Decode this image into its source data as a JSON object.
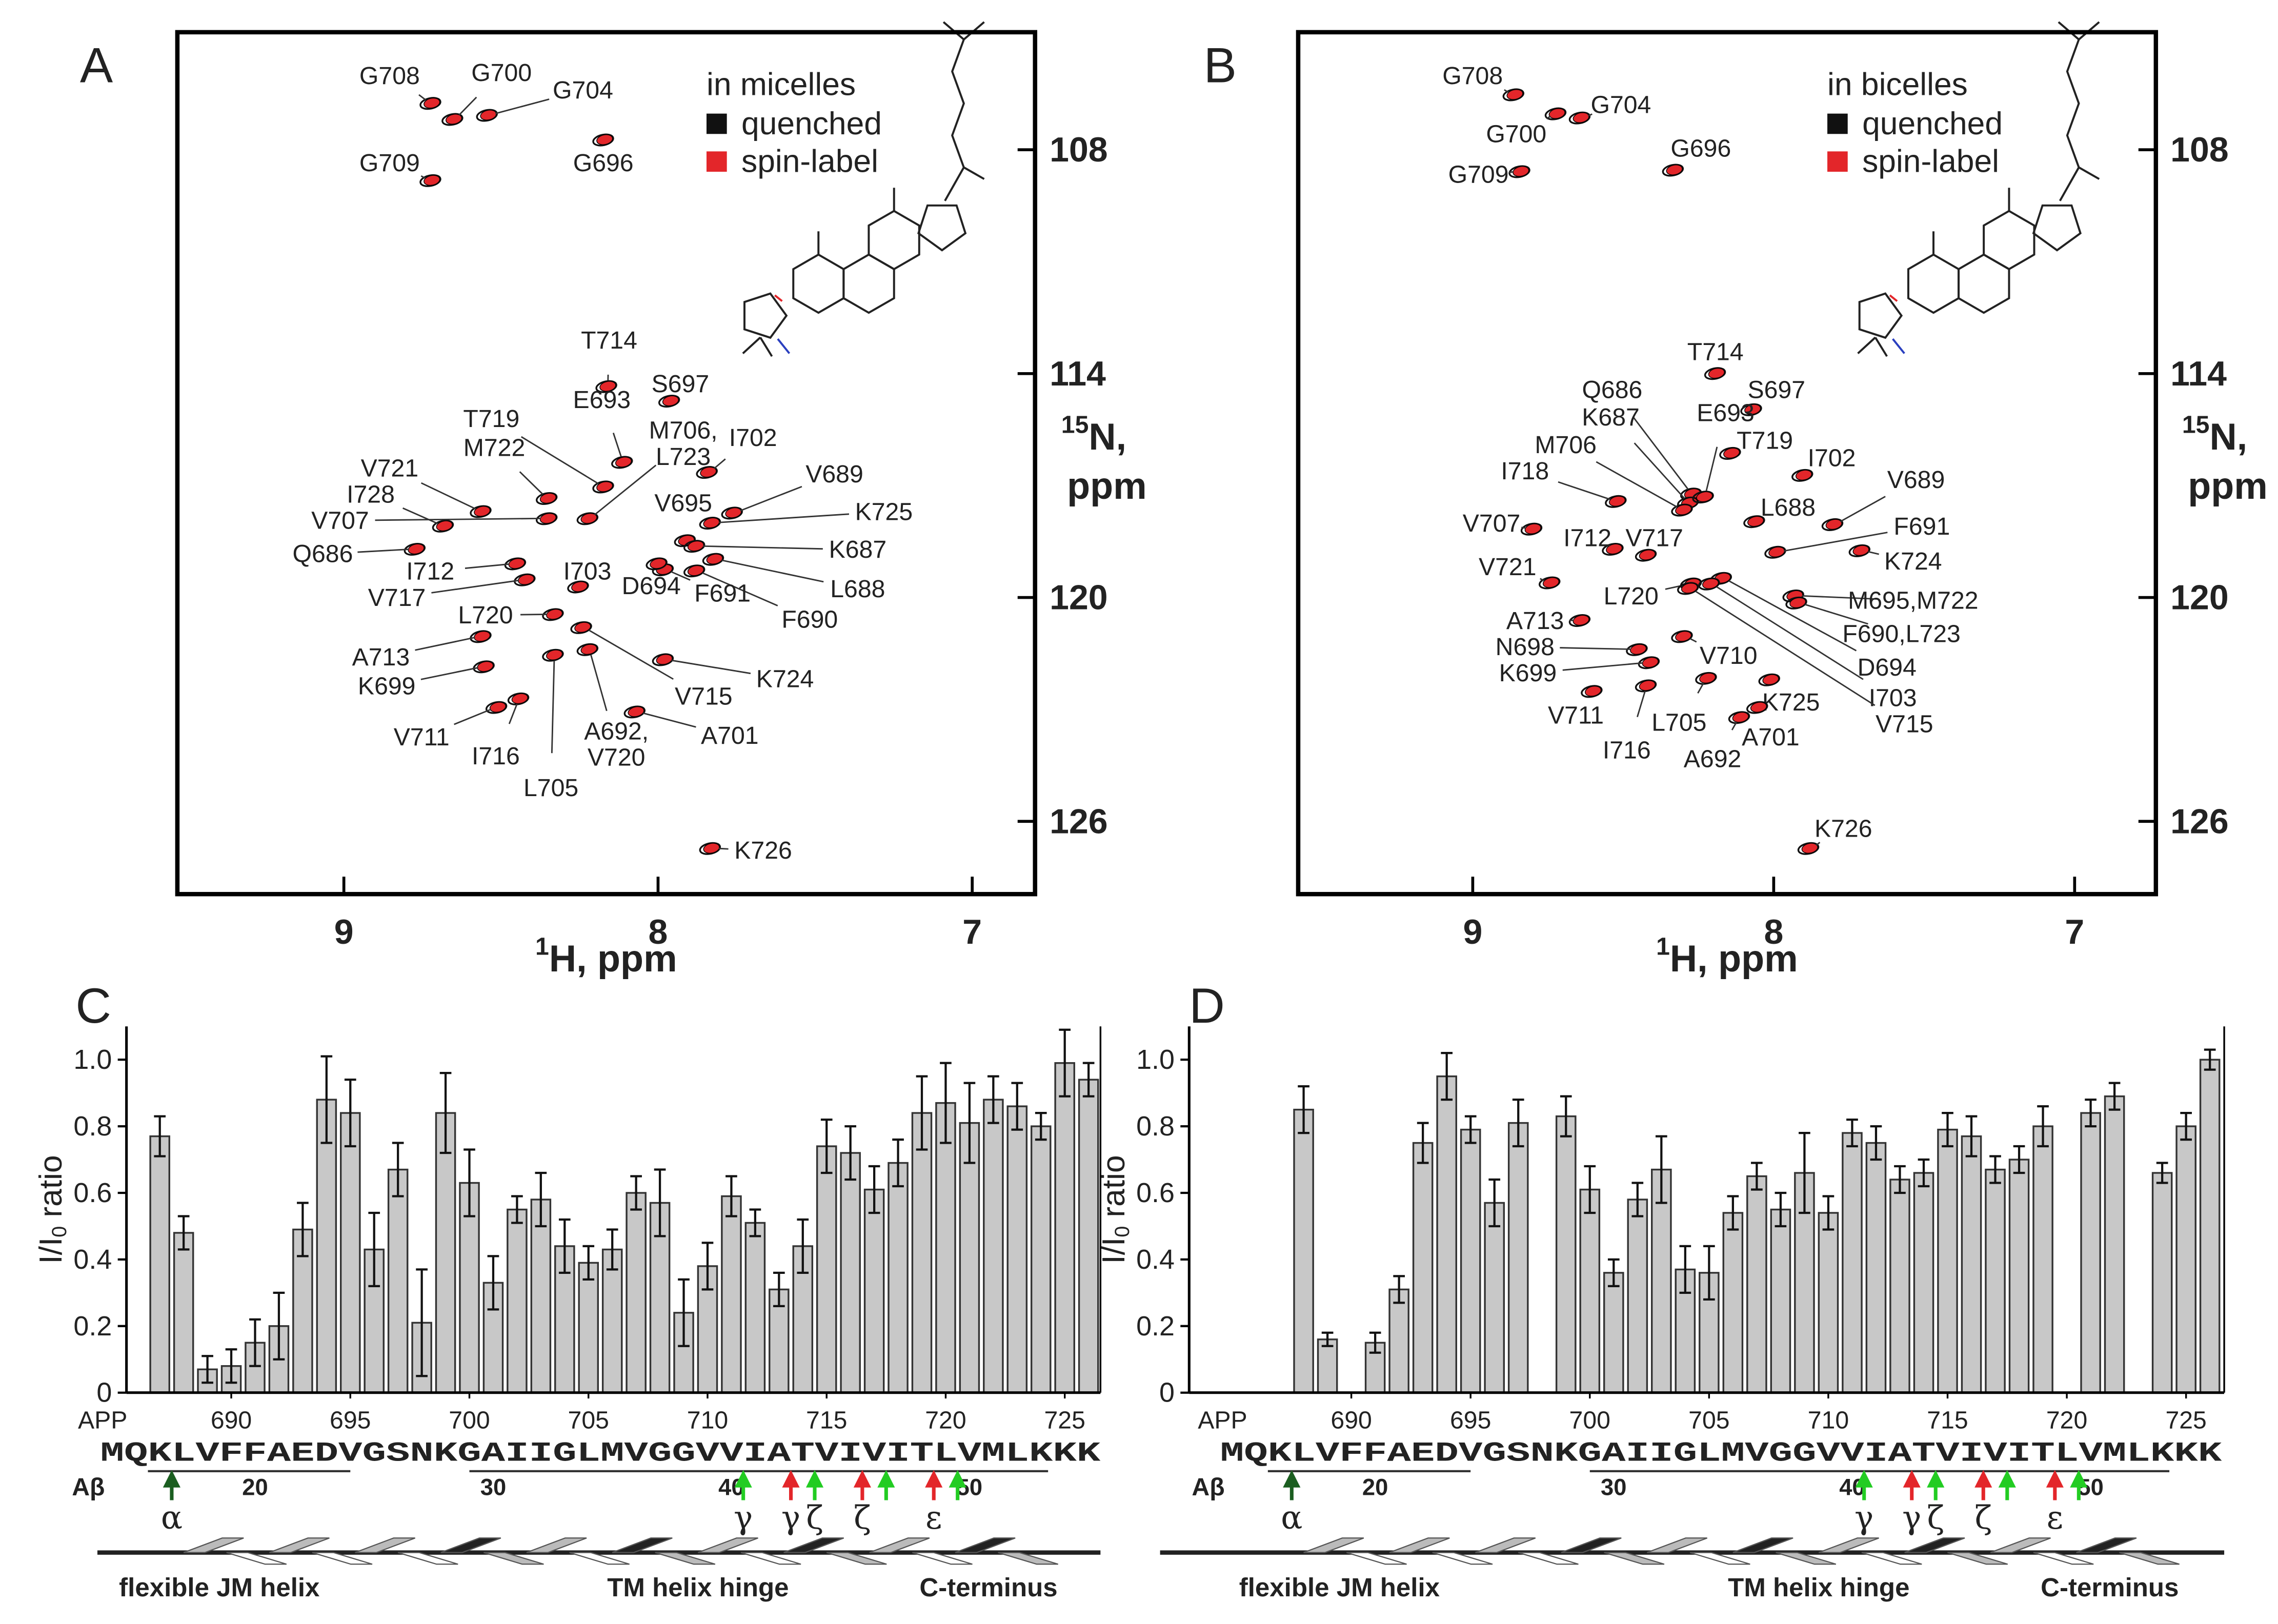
{
  "chart_data": [
    {
      "type": "scatter",
      "panel": "A",
      "legend_title": "in micelles",
      "legend": [
        {
          "name": "quenched",
          "color": "#111111"
        },
        {
          "name": "spin-label",
          "color": "#e3262a"
        }
      ],
      "xlabel": {
        "sup": "1",
        "text": "H, ppm"
      },
      "ylabel": {
        "sup": "15",
        "text": "N,",
        "text2": "ppm"
      },
      "xlim": [
        9.53,
        6.8
      ],
      "ylim": [
        104.85,
        127.95
      ],
      "xticks": [
        9,
        8,
        7
      ],
      "yticks": [
        108,
        114,
        120,
        126
      ],
      "labels": [
        "G708",
        "G700",
        "G704",
        "G709",
        "G696",
        "T714",
        "S697",
        "E693",
        "T719",
        "M722",
        "V721",
        "I728",
        "V707",
        "Q686",
        [
          "M706,",
          "L723"
        ],
        "I702",
        "V689",
        "V695",
        "K725",
        "K687",
        "L688",
        "F690",
        "F691",
        "D694",
        "I703",
        "I712",
        "V717",
        "L720",
        "A713",
        "K699",
        "V711",
        "I716",
        "L705",
        "V715",
        [
          "A692,",
          "V720"
        ],
        "A701",
        "K724",
        "K726"
      ],
      "x": [
        8.72,
        8.65,
        8.54,
        8.72,
        8.17,
        8.16,
        7.96,
        8.11,
        8.17,
        8.35,
        8.56,
        8.68,
        8.35,
        8.77,
        8.22,
        7.84,
        7.76,
        7.91,
        7.83,
        7.88,
        7.82,
        7.88,
        7.98,
        8.0,
        8.25,
        8.45,
        8.42,
        8.33,
        8.56,
        8.55,
        8.51,
        8.44,
        8.33,
        8.24,
        8.22,
        8.07,
        7.98,
        7.83
      ],
      "y": [
        106.75,
        107.18,
        107.07,
        108.82,
        107.73,
        114.34,
        114.73,
        116.37,
        117.03,
        117.34,
        117.69,
        118.08,
        117.88,
        118.7,
        117.88,
        116.64,
        117.73,
        118.47,
        118.0,
        118.62,
        118.97,
        119.28,
        119.25,
        119.09,
        119.71,
        119.09,
        119.52,
        120.45,
        121.04,
        121.85,
        122.94,
        122.71,
        121.54,
        120.8,
        121.39,
        123.06,
        121.66,
        126.72
      ]
    },
    {
      "type": "scatter",
      "panel": "B",
      "legend_title": "in bicelles",
      "legend": [
        {
          "name": "quenched",
          "color": "#111111"
        },
        {
          "name": "spin-label",
          "color": "#e3262a"
        }
      ],
      "xlabel": {
        "sup": "1",
        "text": "H, ppm"
      },
      "ylabel": {
        "sup": "15",
        "text": "N,",
        "text2": "ppm"
      },
      "xlim": [
        9.58,
        6.73
      ],
      "ylim": [
        104.85,
        127.95
      ],
      "xticks": [
        9,
        8,
        7
      ],
      "yticks": [
        108,
        114,
        120,
        126
      ],
      "labels": [
        "G708",
        "G700",
        "G704",
        "G709",
        "G696",
        "T714",
        "S697",
        "Q686",
        "K687",
        "E693",
        "M706",
        "T719",
        "I702",
        "I718",
        "V689",
        "L688",
        "V707",
        "I712",
        "V717",
        "F691",
        "K724",
        "V721",
        "M695,M722",
        "F690,L723",
        "L720",
        "D694",
        "I703",
        "V715",
        "A713",
        "N698",
        "K699",
        "V710",
        "K725",
        "L705",
        "V711",
        "I716",
        "A692",
        "A701",
        "K726"
      ],
      "x": [
        8.86,
        8.72,
        8.64,
        8.84,
        8.33,
        8.19,
        8.07,
        8.27,
        8.28,
        8.23,
        8.3,
        8.14,
        7.9,
        8.52,
        7.8,
        8.06,
        8.8,
        8.53,
        8.42,
        7.99,
        7.71,
        8.74,
        7.93,
        7.92,
        8.27,
        8.17,
        8.21,
        8.28,
        8.64,
        8.45,
        8.41,
        8.3,
        8.01,
        8.22,
        8.6,
        8.42,
        8.11,
        8.05,
        7.88
      ],
      "y": [
        106.52,
        107.03,
        107.14,
        108.58,
        108.54,
        113.99,
        114.96,
        117.22,
        117.46,
        117.3,
        117.65,
        116.13,
        116.72,
        117.42,
        118.04,
        117.96,
        118.16,
        118.7,
        118.86,
        118.78,
        118.74,
        119.6,
        119.95,
        120.14,
        119.63,
        119.48,
        119.63,
        119.75,
        120.61,
        121.39,
        121.74,
        121.04,
        122.2,
        122.16,
        122.51,
        122.36,
        123.21,
        122.94,
        126.72
      ]
    },
    {
      "type": "bar",
      "panel": "C",
      "color": "#c8c8c8",
      "x": [
        687,
        688,
        689,
        690,
        691,
        692,
        693,
        694,
        695,
        696,
        697,
        698,
        699,
        700,
        701,
        702,
        703,
        704,
        705,
        706,
        707,
        708,
        709,
        710,
        711,
        712,
        713,
        714,
        715,
        716,
        717,
        718,
        719,
        720,
        721,
        722,
        723,
        724,
        725,
        726
      ],
      "values": [
        0.77,
        0.48,
        0.07,
        0.08,
        0.15,
        0.2,
        0.49,
        0.88,
        0.84,
        0.43,
        0.67,
        0.21,
        0.84,
        0.63,
        0.33,
        0.55,
        0.58,
        0.44,
        0.39,
        0.43,
        0.6,
        0.57,
        0.24,
        0.38,
        0.59,
        0.51,
        0.31,
        0.44,
        0.74,
        0.72,
        0.61,
        0.69,
        0.84,
        0.87,
        0.81,
        0.88,
        0.86,
        0.8,
        0.99,
        0.94
      ],
      "errors": [
        0.06,
        0.05,
        0.04,
        0.05,
        0.07,
        0.1,
        0.08,
        0.13,
        0.1,
        0.11,
        0.08,
        0.16,
        0.12,
        0.1,
        0.08,
        0.04,
        0.08,
        0.08,
        0.05,
        0.06,
        0.05,
        0.1,
        0.1,
        0.07,
        0.06,
        0.04,
        0.05,
        0.08,
        0.08,
        0.08,
        0.07,
        0.07,
        0.11,
        0.12,
        0.12,
        0.07,
        0.07,
        0.04,
        0.1,
        0.05
      ],
      "xlim": [
        685.6,
        726.5
      ],
      "ylim": [
        0,
        1.1
      ],
      "xticks": [
        690,
        695,
        700,
        705,
        710,
        715,
        720,
        725
      ],
      "yticks": [
        0,
        0.2,
        0.4,
        0.6,
        0.8,
        {
          "value": 1,
          "label": "1.0"
        }
      ],
      "ylabel": {
        "main": "I/I",
        "sub": "0",
        "tail": "ratio"
      },
      "axis_name": "APP",
      "sequence": "MQKLVFFAEDVGSNKGAIIGLMVGGVVIATVIVITLVMLKKK",
      "abeta_name": "Aβ",
      "abeta_ticks": [
        {
          "value": 691,
          "label": "20"
        },
        {
          "value": 701,
          "label": "30"
        },
        {
          "value": 711,
          "label": "40"
        },
        {
          "value": 721,
          "label": "50"
        }
      ],
      "cleavage_sites": [
        {
          "site": 687.5,
          "color": "#1b5e20",
          "label": "α"
        },
        {
          "site": 711.5,
          "color": "#22cc22",
          "label": "γ"
        },
        {
          "site": 713.5,
          "color": "#e3262a",
          "label": "γ"
        },
        {
          "site": 714.5,
          "color": "#22cc22",
          "label": "ζ"
        },
        {
          "site": 716.5,
          "color": "#e3262a",
          "label": "ζ"
        },
        {
          "site": 717.5,
          "color": "#22cc22"
        },
        {
          "site": 719.5,
          "color": "#e3262a",
          "label": "ε"
        },
        {
          "site": 720.5,
          "color": "#22cc22"
        }
      ],
      "regions": [
        "flexible JM helix",
        "TM helix hinge",
        "C-terminus"
      ]
    },
    {
      "type": "bar",
      "panel": "D",
      "color": "#c8c8c8",
      "x": [
        687,
        688,
        689,
        690,
        691,
        692,
        693,
        694,
        695,
        696,
        697,
        698,
        699,
        700,
        701,
        702,
        703,
        704,
        705,
        706,
        707,
        708,
        709,
        710,
        711,
        712,
        713,
        714,
        715,
        716,
        717,
        718,
        719,
        720,
        721,
        722,
        723,
        724,
        725,
        726
      ],
      "values": [
        null,
        0.85,
        0.16,
        null,
        0.15,
        0.31,
        0.75,
        0.95,
        0.79,
        0.57,
        0.81,
        null,
        0.83,
        0.61,
        0.36,
        0.58,
        0.67,
        0.37,
        0.36,
        0.54,
        0.65,
        0.55,
        0.66,
        0.54,
        0.78,
        0.75,
        0.64,
        0.66,
        0.79,
        0.77,
        0.67,
        0.7,
        0.8,
        null,
        0.84,
        0.89,
        null,
        0.66,
        0.8,
        1.0
      ],
      "errors": [
        null,
        0.07,
        0.02,
        null,
        0.03,
        0.04,
        0.06,
        0.07,
        0.04,
        0.07,
        0.07,
        null,
        0.06,
        0.07,
        0.04,
        0.05,
        0.1,
        0.07,
        0.08,
        0.05,
        0.04,
        0.05,
        0.12,
        0.05,
        0.04,
        0.05,
        0.04,
        0.04,
        0.05,
        0.06,
        0.04,
        0.04,
        0.06,
        null,
        0.04,
        0.04,
        null,
        0.03,
        0.04,
        0.03
      ],
      "xlim": [
        683.2,
        726.6
      ],
      "ylim": [
        0,
        1.1
      ],
      "xticks": [
        690,
        695,
        700,
        705,
        710,
        715,
        720,
        725
      ],
      "yticks": [
        0,
        0.2,
        0.4,
        0.6,
        0.8,
        {
          "value": 1,
          "label": "1.0"
        }
      ],
      "ylabel": {
        "main": "I/I",
        "sub": "0",
        "tail": "ratio"
      },
      "axis_name": "APP",
      "sequence": "MQKLVFFAEDVGSNKGAIIGLMVGGVVIATVIVITLVMLKKK",
      "abeta_name": "Aβ",
      "abeta_ticks": [
        {
          "value": 691,
          "label": "20"
        },
        {
          "value": 701,
          "label": "30"
        },
        {
          "value": 711,
          "label": "40"
        },
        {
          "value": 721,
          "label": "50"
        }
      ],
      "cleavage_sites": [
        {
          "site": 687.5,
          "color": "#1b5e20",
          "label": "α"
        },
        {
          "site": 711.5,
          "color": "#22cc22",
          "label": "γ"
        },
        {
          "site": 713.5,
          "color": "#e3262a",
          "label": "γ"
        },
        {
          "site": 714.5,
          "color": "#22cc22",
          "label": "ζ"
        },
        {
          "site": 716.5,
          "color": "#e3262a",
          "label": "ζ"
        },
        {
          "site": 717.5,
          "color": "#22cc22"
        },
        {
          "site": 719.5,
          "color": "#e3262a",
          "label": "ε"
        },
        {
          "site": 720.5,
          "color": "#22cc22"
        }
      ],
      "regions": [
        "flexible JM helix",
        "TM helix hinge",
        "C-terminus"
      ]
    }
  ]
}
